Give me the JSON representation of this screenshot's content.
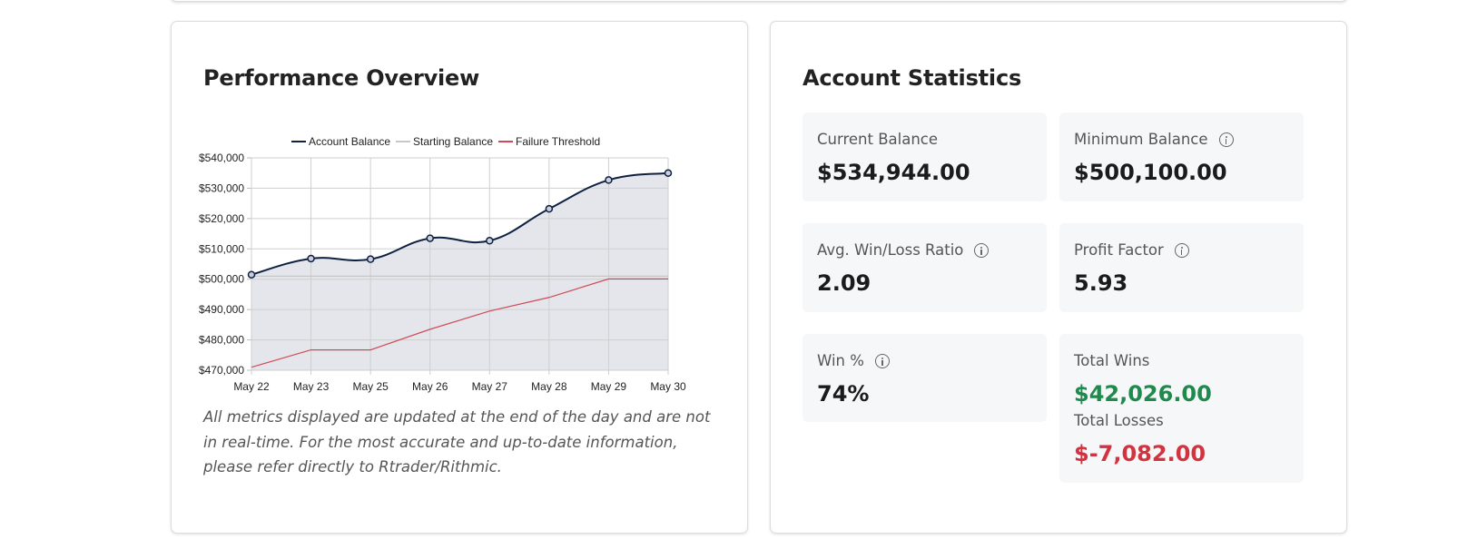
{
  "performance": {
    "title": "Performance Overview",
    "disclaimer": "All metrics displayed are updated at the end of the day and are not in real-time. For the most accurate and up-to-date information, please refer directly to Rtrader/Rithmic."
  },
  "statistics": {
    "title": "Account Statistics",
    "current_balance": {
      "label": "Current Balance",
      "value": "$534,944.00"
    },
    "minimum_balance": {
      "label": "Minimum Balance",
      "value": "$500,100.00"
    },
    "avg_win_loss": {
      "label": "Avg. Win/Loss Ratio",
      "value": "2.09"
    },
    "profit_factor": {
      "label": "Profit Factor",
      "value": "5.93"
    },
    "win_percent": {
      "label": "Win %",
      "value": "74%"
    },
    "total_wins": {
      "label": "Total Wins",
      "value": "$42,026.00"
    },
    "total_losses": {
      "label": "Total Losses",
      "value": "$-7,082.00"
    }
  },
  "colors": {
    "account_balance": "#0f2140",
    "starting_balance": "#c7c7c7",
    "failure_threshold": "#d04a55",
    "area_fill": "#e4e6ec",
    "wins": "#1e8a4c",
    "losses": "#d3323f"
  },
  "chart_data": {
    "type": "line",
    "categories": [
      "May 22",
      "May 23",
      "May 25",
      "May 26",
      "May 27",
      "May 28",
      "May 29",
      "May 30"
    ],
    "series": [
      {
        "name": "Account Balance",
        "values": [
          501500,
          506800,
          506600,
          513500,
          512700,
          523200,
          532700,
          535000
        ],
        "fill": true
      },
      {
        "name": "Starting Balance",
        "values": [
          501000,
          501000,
          501000,
          501000,
          501000,
          501000,
          501000,
          501000
        ]
      },
      {
        "name": "Failure Threshold",
        "values": [
          471000,
          476700,
          476700,
          483500,
          489500,
          494000,
          500100,
          500100
        ]
      }
    ],
    "ylim": [
      470000,
      540000
    ],
    "yticks": [
      "$540,000",
      "$530,000",
      "$520,000",
      "$510,000",
      "$500,000",
      "$490,000",
      "$480,000",
      "$470,000"
    ],
    "ytick_values": [
      540000,
      530000,
      520000,
      510000,
      500000,
      490000,
      480000,
      470000
    ],
    "grid": true,
    "legend": "top-center"
  }
}
